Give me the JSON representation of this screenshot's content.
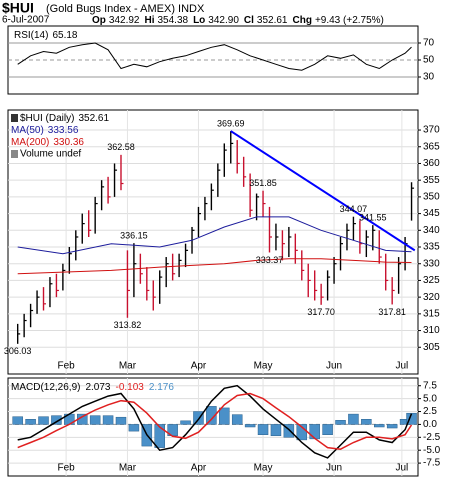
{
  "header": {
    "symbol": "$HUI",
    "name": "(Gold Bugs Index - AMEX) INDX",
    "date": "6-Jul-2007",
    "stats": [
      {
        "label": "Op",
        "value": "342.92"
      },
      {
        "label": "Hi",
        "value": "354.38"
      },
      {
        "label": "Lo",
        "value": "342.90"
      },
      {
        "label": "Cl",
        "value": "352.61"
      },
      {
        "label": "Chg",
        "value": "+9.43 (+2.75%)"
      }
    ]
  },
  "chart_data": [
    {
      "type": "line",
      "xlim": [
        -2,
        125
      ],
      "ylim": [
        10,
        90
      ],
      "yticks": [
        30,
        50,
        70
      ],
      "grid": true,
      "series": [
        {
          "name": "RSI(14)",
          "color": "#000000",
          "x": [
            1,
            5,
            9,
            13,
            17,
            21,
            25,
            29,
            33,
            37,
            41,
            45,
            49,
            53,
            57,
            61,
            65,
            69,
            73,
            77,
            81,
            85,
            89,
            93,
            97,
            101,
            105,
            109,
            113,
            117,
            121,
            123
          ],
          "values": [
            45,
            55,
            60,
            58,
            65,
            68,
            70,
            62,
            40,
            45,
            42,
            48,
            52,
            55,
            60,
            65,
            68,
            62,
            55,
            50,
            45,
            40,
            38,
            45,
            55,
            52,
            56,
            45,
            40,
            50,
            58,
            65.18
          ]
        }
      ]
    },
    {
      "type": "ohlc",
      "xlim": [
        -2,
        125
      ],
      "ylim": [
        297,
        376
      ],
      "yticks": [
        305,
        310,
        315,
        320,
        325,
        330,
        335,
        340,
        345,
        350,
        355,
        360,
        365,
        370
      ],
      "xticks": [
        {
          "value": 16,
          "label": "Feb"
        },
        {
          "value": 35,
          "label": "Mar"
        },
        {
          "value": 57,
          "label": "Apr"
        },
        {
          "value": 77,
          "label": "May"
        },
        {
          "value": 99,
          "label": "Jun"
        },
        {
          "value": 120,
          "label": "Jul"
        }
      ],
      "grid": true,
      "series": [
        {
          "name": "$HUI (Daily)",
          "color": "#000000",
          "down_color": "#c8102e",
          "x": [
            1,
            3,
            5,
            7,
            9,
            11,
            13,
            15,
            17,
            19,
            21,
            23,
            25,
            27,
            29,
            31,
            33,
            35,
            37,
            39,
            41,
            43,
            45,
            47,
            49,
            51,
            53,
            55,
            57,
            59,
            61,
            63,
            65,
            67,
            69,
            71,
            73,
            75,
            77,
            79,
            81,
            83,
            85,
            87,
            89,
            91,
            93,
            95,
            97,
            99,
            101,
            103,
            105,
            107,
            109,
            111,
            113,
            115,
            117,
            119,
            121,
            123
          ],
          "high": [
            312,
            315,
            318,
            322,
            323,
            326,
            327,
            330,
            335,
            340,
            345,
            346,
            350,
            355,
            356,
            360,
            362.58,
            334,
            336.15,
            333,
            329,
            325,
            328,
            332,
            333,
            333,
            336,
            341,
            347,
            350,
            354,
            360,
            366,
            369.69,
            367,
            362,
            357,
            351,
            351.85,
            347,
            342,
            340,
            341,
            339,
            334,
            330,
            328,
            324,
            328,
            332,
            338,
            342,
            344.07,
            343,
            340,
            341.55,
            340,
            333,
            326,
            332,
            338,
            354.38
          ],
          "low": [
            306.03,
            308,
            311,
            315,
            316,
            317,
            320,
            322,
            327,
            331,
            336,
            338,
            339,
            346,
            348,
            350,
            352,
            313.82,
            320,
            324,
            319,
            316,
            318,
            323,
            325,
            326,
            329,
            333,
            338,
            343,
            346,
            350,
            356,
            360,
            357,
            353,
            344,
            343,
            344,
            333.37,
            334,
            331,
            332,
            330,
            325,
            320,
            319,
            317.7,
            319,
            324,
            328,
            334,
            337,
            333,
            332,
            334,
            330,
            322,
            317.81,
            321,
            328,
            342.9
          ],
          "values": [
            309,
            313,
            316,
            320,
            318,
            324,
            322,
            328,
            333,
            338,
            342,
            340,
            348,
            353,
            350,
            358,
            354,
            322,
            330,
            327,
            322,
            320,
            326,
            330,
            327,
            331,
            334,
            340,
            345,
            348,
            352,
            358,
            364,
            366,
            360,
            356,
            346,
            350,
            348,
            338,
            338,
            336,
            338,
            334,
            328,
            325,
            322,
            320,
            326,
            330,
            336,
            340,
            342,
            336,
            338,
            340,
            332,
            325,
            322,
            330,
            336,
            352.61
          ]
        },
        {
          "name": "MA(50)",
          "color": "#1c1c9c",
          "x": [
            1,
            15,
            30,
            45,
            55,
            65,
            75,
            85,
            95,
            105,
            115,
            123
          ],
          "values": [
            335,
            333,
            336,
            335,
            337,
            341,
            344,
            344,
            340,
            337,
            334,
            333.56
          ]
        },
        {
          "name": "MA(200)",
          "color": "#d01010",
          "x": [
            1,
            15,
            30,
            45,
            55,
            65,
            75,
            85,
            95,
            105,
            115,
            123
          ],
          "values": [
            327,
            327.5,
            328,
            329,
            329.5,
            330,
            331,
            331.5,
            331.5,
            331,
            330.5,
            330.36
          ]
        }
      ],
      "trendline": {
        "color": "#0000ff",
        "x": [
          67,
          124
        ],
        "values": [
          369.69,
          334
        ]
      },
      "annotations": [
        {
          "x": 67,
          "value": 369.69
        },
        {
          "x": 33,
          "value": 362.58
        },
        {
          "x": 77,
          "value": 351.85
        },
        {
          "x": 105,
          "value": 344.07
        },
        {
          "x": 111,
          "value": 341.55
        },
        {
          "x": 37,
          "value": 336.15
        },
        {
          "x": 79,
          "value": 333.37
        },
        {
          "x": 95,
          "value": 317.7,
          "label": "317.70"
        },
        {
          "x": 117,
          "value": 317.81
        },
        {
          "x": 35,
          "value": 313.82
        },
        {
          "x": 1,
          "value": 306.03
        }
      ],
      "volume_label": "Volume undef"
    },
    {
      "type": "macd",
      "name": "MACD(12,26,9)",
      "xlim": [
        -2,
        125
      ],
      "ylim": [
        -10,
        9
      ],
      "yticks": [
        7.5,
        {
          "value": 5,
          "label": "5.0"
        },
        2.5,
        {
          "value": 0,
          "label": "0.0"
        },
        -2.5,
        {
          "value": -5,
          "label": "-5.0"
        },
        -7.5
      ],
      "xticks": [
        {
          "value": 16,
          "label": "Feb"
        },
        {
          "value": 35,
          "label": "Mar"
        },
        {
          "value": 57,
          "label": "Apr"
        },
        {
          "value": 77,
          "label": "May"
        },
        {
          "value": 99,
          "label": "Jun"
        },
        {
          "value": 120,
          "label": "Jul"
        }
      ],
      "series": [
        {
          "style": "bar",
          "color": "#4a90c8",
          "x": [
            1,
            5,
            9,
            13,
            17,
            21,
            25,
            29,
            33,
            37,
            41,
            45,
            49,
            53,
            57,
            61,
            65,
            69,
            73,
            77,
            81,
            85,
            89,
            93,
            97,
            101,
            105,
            109,
            113,
            117,
            121,
            123
          ],
          "values": [
            1.5,
            1,
            1.5,
            1.7,
            2,
            2,
            1.7,
            1.7,
            1.4,
            -1.3,
            -4.2,
            -4.5,
            -2.2,
            0.7,
            2.5,
            3.5,
            3.2,
            1.9,
            -0.5,
            -2,
            -2.2,
            -2.5,
            -3,
            -2.8,
            -2,
            0.8,
            2,
            1,
            -0.5,
            -0.7,
            1,
            2.176
          ]
        },
        {
          "style": "line",
          "color": "#000000",
          "x": [
            1,
            5,
            9,
            13,
            17,
            21,
            25,
            29,
            33,
            37,
            41,
            45,
            49,
            53,
            57,
            61,
            65,
            69,
            73,
            77,
            81,
            85,
            89,
            93,
            97,
            101,
            105,
            109,
            113,
            117,
            121,
            123
          ],
          "values": [
            -3,
            -2.5,
            -1,
            0.5,
            2,
            3.5,
            4.5,
            5.5,
            6,
            3,
            -2,
            -5,
            -4.5,
            -2,
            1,
            4.5,
            7,
            7.5,
            5.5,
            3,
            1,
            -1,
            -3.5,
            -5.5,
            -6.5,
            -4,
            -1.5,
            -1.5,
            -3,
            -3.5,
            -1,
            2.073
          ]
        },
        {
          "style": "line",
          "color": "#e02020",
          "x": [
            1,
            5,
            9,
            13,
            17,
            21,
            25,
            29,
            33,
            37,
            41,
            45,
            49,
            53,
            57,
            61,
            65,
            69,
            73,
            77,
            81,
            85,
            89,
            93,
            97,
            101,
            105,
            109,
            113,
            117,
            121,
            123
          ],
          "values": [
            -4.5,
            -3.5,
            -2.5,
            -1.2,
            0,
            1.5,
            2.8,
            3.8,
            4.6,
            4.3,
            2.2,
            -0.5,
            -2.3,
            -2.7,
            -1.5,
            1,
            3.8,
            5.6,
            6,
            5,
            3.2,
            1.5,
            -0.5,
            -2.7,
            -4.5,
            -4.8,
            -3.5,
            -2.5,
            -2.5,
            -2.8,
            -2,
            -0.103
          ]
        }
      ]
    }
  ]
}
